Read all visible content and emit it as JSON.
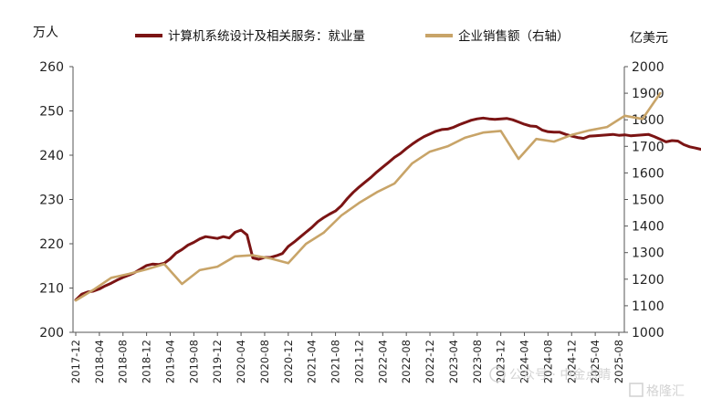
{
  "chart_data": {
    "type": "line",
    "left_axis": {
      "unit": "万人",
      "ylim": [
        200,
        260
      ],
      "ticks": [
        "200",
        "210",
        "220",
        "230",
        "240",
        "250",
        "260"
      ]
    },
    "right_axis": {
      "unit": "亿美元",
      "ylim": [
        1000,
        2000
      ],
      "ticks": [
        "1000",
        "1100",
        "1200",
        "1300",
        "1400",
        "1500",
        "1600",
        "1700",
        "1800",
        "1900",
        "2000"
      ]
    },
    "x_ticks": [
      "2017-12",
      "2018-04",
      "2018-08",
      "2018-12",
      "2019-04",
      "2019-08",
      "2019-12",
      "2020-04",
      "2020-08",
      "2020-12",
      "2021-04",
      "2021-08",
      "2021-12",
      "2022-04",
      "2022-08",
      "2022-12",
      "2023-04",
      "2023-08",
      "2023-12",
      "2024-04",
      "2024-08",
      "2024-12",
      "2025-04",
      "2025-08"
    ],
    "x_start": "2017-12",
    "grid": false,
    "legend_position": "top",
    "series": [
      {
        "name": "计算机系统设计及相关服务：就业量",
        "axis": "left",
        "color": "#7b1414",
        "frequency": "monthly",
        "values": [
          207.3,
          208.6,
          209.1,
          209.3,
          209.8,
          210.5,
          211.1,
          211.8,
          212.4,
          212.9,
          213.5,
          214.3,
          215.1,
          215.4,
          215.3,
          215.6,
          216.6,
          217.9,
          218.7,
          219.7,
          220.3,
          221.1,
          221.6,
          221.4,
          221.2,
          221.6,
          221.3,
          222.6,
          223.1,
          222.0,
          216.8,
          216.5,
          216.9,
          216.9,
          217.3,
          217.8,
          219.4,
          220.4,
          221.5,
          222.6,
          223.7,
          225.0,
          225.9,
          226.7,
          227.4,
          228.6,
          230.2,
          231.6,
          232.8,
          233.9,
          235.0,
          236.2,
          237.3,
          238.4,
          239.5,
          240.4,
          241.5,
          242.5,
          243.4,
          244.2,
          244.8,
          245.4,
          245.8,
          245.9,
          246.3,
          246.9,
          247.4,
          247.9,
          248.2,
          248.4,
          248.2,
          248.1,
          248.2,
          248.3,
          248.0,
          247.5,
          247.0,
          246.6,
          246.5,
          245.7,
          245.3,
          245.2,
          245.2,
          244.7,
          244.3,
          244.0,
          243.8,
          244.3,
          244.4,
          244.5,
          244.6,
          244.7,
          244.5,
          244.6,
          244.4,
          244.5,
          244.6,
          244.7,
          244.2,
          243.6,
          243.0,
          243.3,
          243.2,
          242.4,
          241.9,
          241.6,
          241.3
        ]
      },
      {
        "name": "企业销售额（右轴）",
        "axis": "right",
        "color": "#c8a468",
        "frequency": "quarterly",
        "values": [
          1120,
          1160,
          1205,
          1220,
          1237,
          1257,
          1182,
          1234,
          1247,
          1286,
          1290,
          1278,
          1260,
          1333,
          1375,
          1440,
          1487,
          1527,
          1560,
          1636,
          1680,
          1700,
          1733,
          1752,
          1758,
          1653,
          1728,
          1718,
          1743,
          1760,
          1773,
          1815,
          1803,
          1900
        ]
      }
    ]
  },
  "watermark": {
    "text1": "公众号 · 中金点睛",
    "text2": "格隆汇"
  },
  "colors": {
    "axis": "#555555",
    "employment": "#7b1414",
    "sales": "#c8a468"
  }
}
